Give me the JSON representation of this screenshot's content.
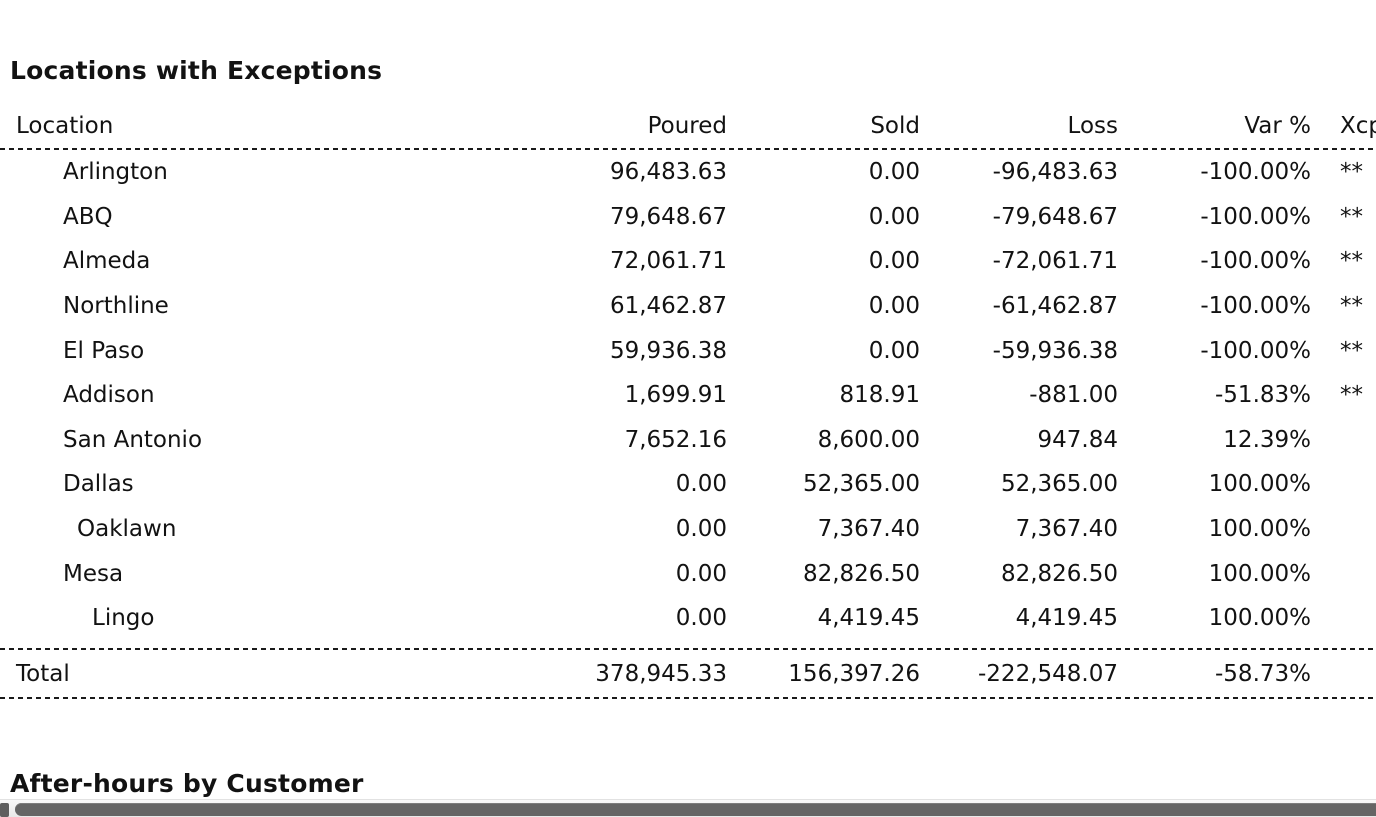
{
  "report": {
    "locations_section": {
      "title": "Locations with Exceptions",
      "columns": {
        "location": "Location",
        "poured": "Poured",
        "sold": "Sold",
        "loss": "Loss",
        "var_pct": "Var %",
        "xcp": "Xcp"
      },
      "rows": [
        {
          "location": "Arlington",
          "indent": 1,
          "poured": "96,483.63",
          "sold": "0.00",
          "loss": "-96,483.63",
          "var_pct": "-100.00%",
          "xcp": "**"
        },
        {
          "location": "ABQ",
          "indent": 1,
          "poured": "79,648.67",
          "sold": "0.00",
          "loss": "-79,648.67",
          "var_pct": "-100.00%",
          "xcp": "**"
        },
        {
          "location": "Almeda",
          "indent": 1,
          "poured": "72,061.71",
          "sold": "0.00",
          "loss": "-72,061.71",
          "var_pct": "-100.00%",
          "xcp": "**"
        },
        {
          "location": "Northline",
          "indent": 1,
          "poured": "61,462.87",
          "sold": "0.00",
          "loss": "-61,462.87",
          "var_pct": "-100.00%",
          "xcp": "**"
        },
        {
          "location": "El Paso",
          "indent": 1,
          "poured": "59,936.38",
          "sold": "0.00",
          "loss": "-59,936.38",
          "var_pct": "-100.00%",
          "xcp": "**"
        },
        {
          "location": "Addison",
          "indent": 1,
          "poured": "1,699.91",
          "sold": "818.91",
          "loss": "-881.00",
          "var_pct": "-51.83%",
          "xcp": "**"
        },
        {
          "location": "San Antonio",
          "indent": 1,
          "poured": "7,652.16",
          "sold": "8,600.00",
          "loss": "947.84",
          "var_pct": "12.39%",
          "xcp": ""
        },
        {
          "location": "Dallas",
          "indent": 1,
          "poured": "0.00",
          "sold": "52,365.00",
          "loss": "52,365.00",
          "var_pct": "100.00%",
          "xcp": ""
        },
        {
          "location": "Oaklawn",
          "indent": 2,
          "poured": "0.00",
          "sold": "7,367.40",
          "loss": "7,367.40",
          "var_pct": "100.00%",
          "xcp": ""
        },
        {
          "location": "Mesa",
          "indent": 1,
          "poured": "0.00",
          "sold": "82,826.50",
          "loss": "82,826.50",
          "var_pct": "100.00%",
          "xcp": ""
        },
        {
          "location": "Lingo",
          "indent": 3,
          "poured": "0.00",
          "sold": "4,419.45",
          "loss": "4,419.45",
          "var_pct": "100.00%",
          "xcp": ""
        }
      ],
      "total": {
        "label": "Total",
        "poured": "378,945.33",
        "sold": "156,397.26",
        "loss": "-222,548.07",
        "var_pct": "-58.73%",
        "xcp": ""
      }
    },
    "after_hours_section": {
      "title": "After-hours by Customer"
    },
    "colors": {
      "text": "#121212",
      "background": "#ffffff",
      "scrollbar_thumb": "#656565",
      "scrollbar_track": "#ececec"
    }
  }
}
